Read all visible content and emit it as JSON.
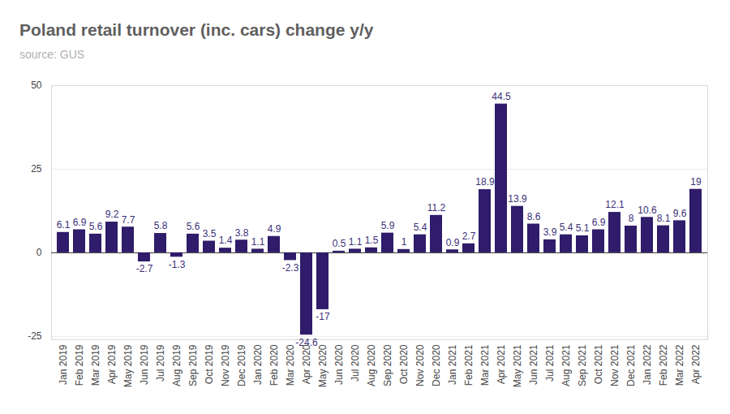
{
  "chart_data": {
    "type": "bar",
    "title": "Poland retail turnover (inc. cars) change y/y",
    "subtitle": "source: GUS",
    "categories": [
      "Jan 2019",
      "Feb 2019",
      "Mar 2019",
      "Apr 2019",
      "May 2019",
      "Jun 2019",
      "Jul 2019",
      "Aug 2019",
      "Sep 2019",
      "Oct 2019",
      "Nov 2019",
      "Dec 2019",
      "Jan 2020",
      "Feb 2020",
      "Mar 2020",
      "Apr 2020",
      "May 2020",
      "Jun 2020",
      "Jul 2020",
      "Aug 2020",
      "Sep 2020",
      "Oct 2020",
      "Nov 2020",
      "Dec 2020",
      "Jan 2021",
      "Feb 2021",
      "Mar 2021",
      "Apr 2021",
      "May 2021",
      "Jun 2021",
      "Jul 2021",
      "Aug 2021",
      "Sep 2021",
      "Oct 2021",
      "Nov 2021",
      "Dec 2021",
      "Jan 2022",
      "Feb 2022",
      "Mar 2022",
      "Apr 2022"
    ],
    "values": [
      6.1,
      6.9,
      5.6,
      9.2,
      7.7,
      -2.7,
      5.8,
      -1.3,
      5.6,
      3.5,
      1.4,
      3.8,
      1.1,
      4.9,
      -2.3,
      -24.6,
      -17,
      0.5,
      1.1,
      1.5,
      5.9,
      1,
      5.4,
      11.2,
      0.9,
      2.7,
      18.9,
      44.5,
      13.9,
      8.6,
      3.9,
      5.4,
      5.1,
      6.9,
      12.1,
      8,
      10.6,
      8.1,
      9.6,
      19
    ],
    "color": "#2f1c6a",
    "ylim": [
      -26,
      50
    ],
    "yticks": [
      -25,
      0,
      25,
      50
    ],
    "grid": true,
    "data_labels": true
  }
}
